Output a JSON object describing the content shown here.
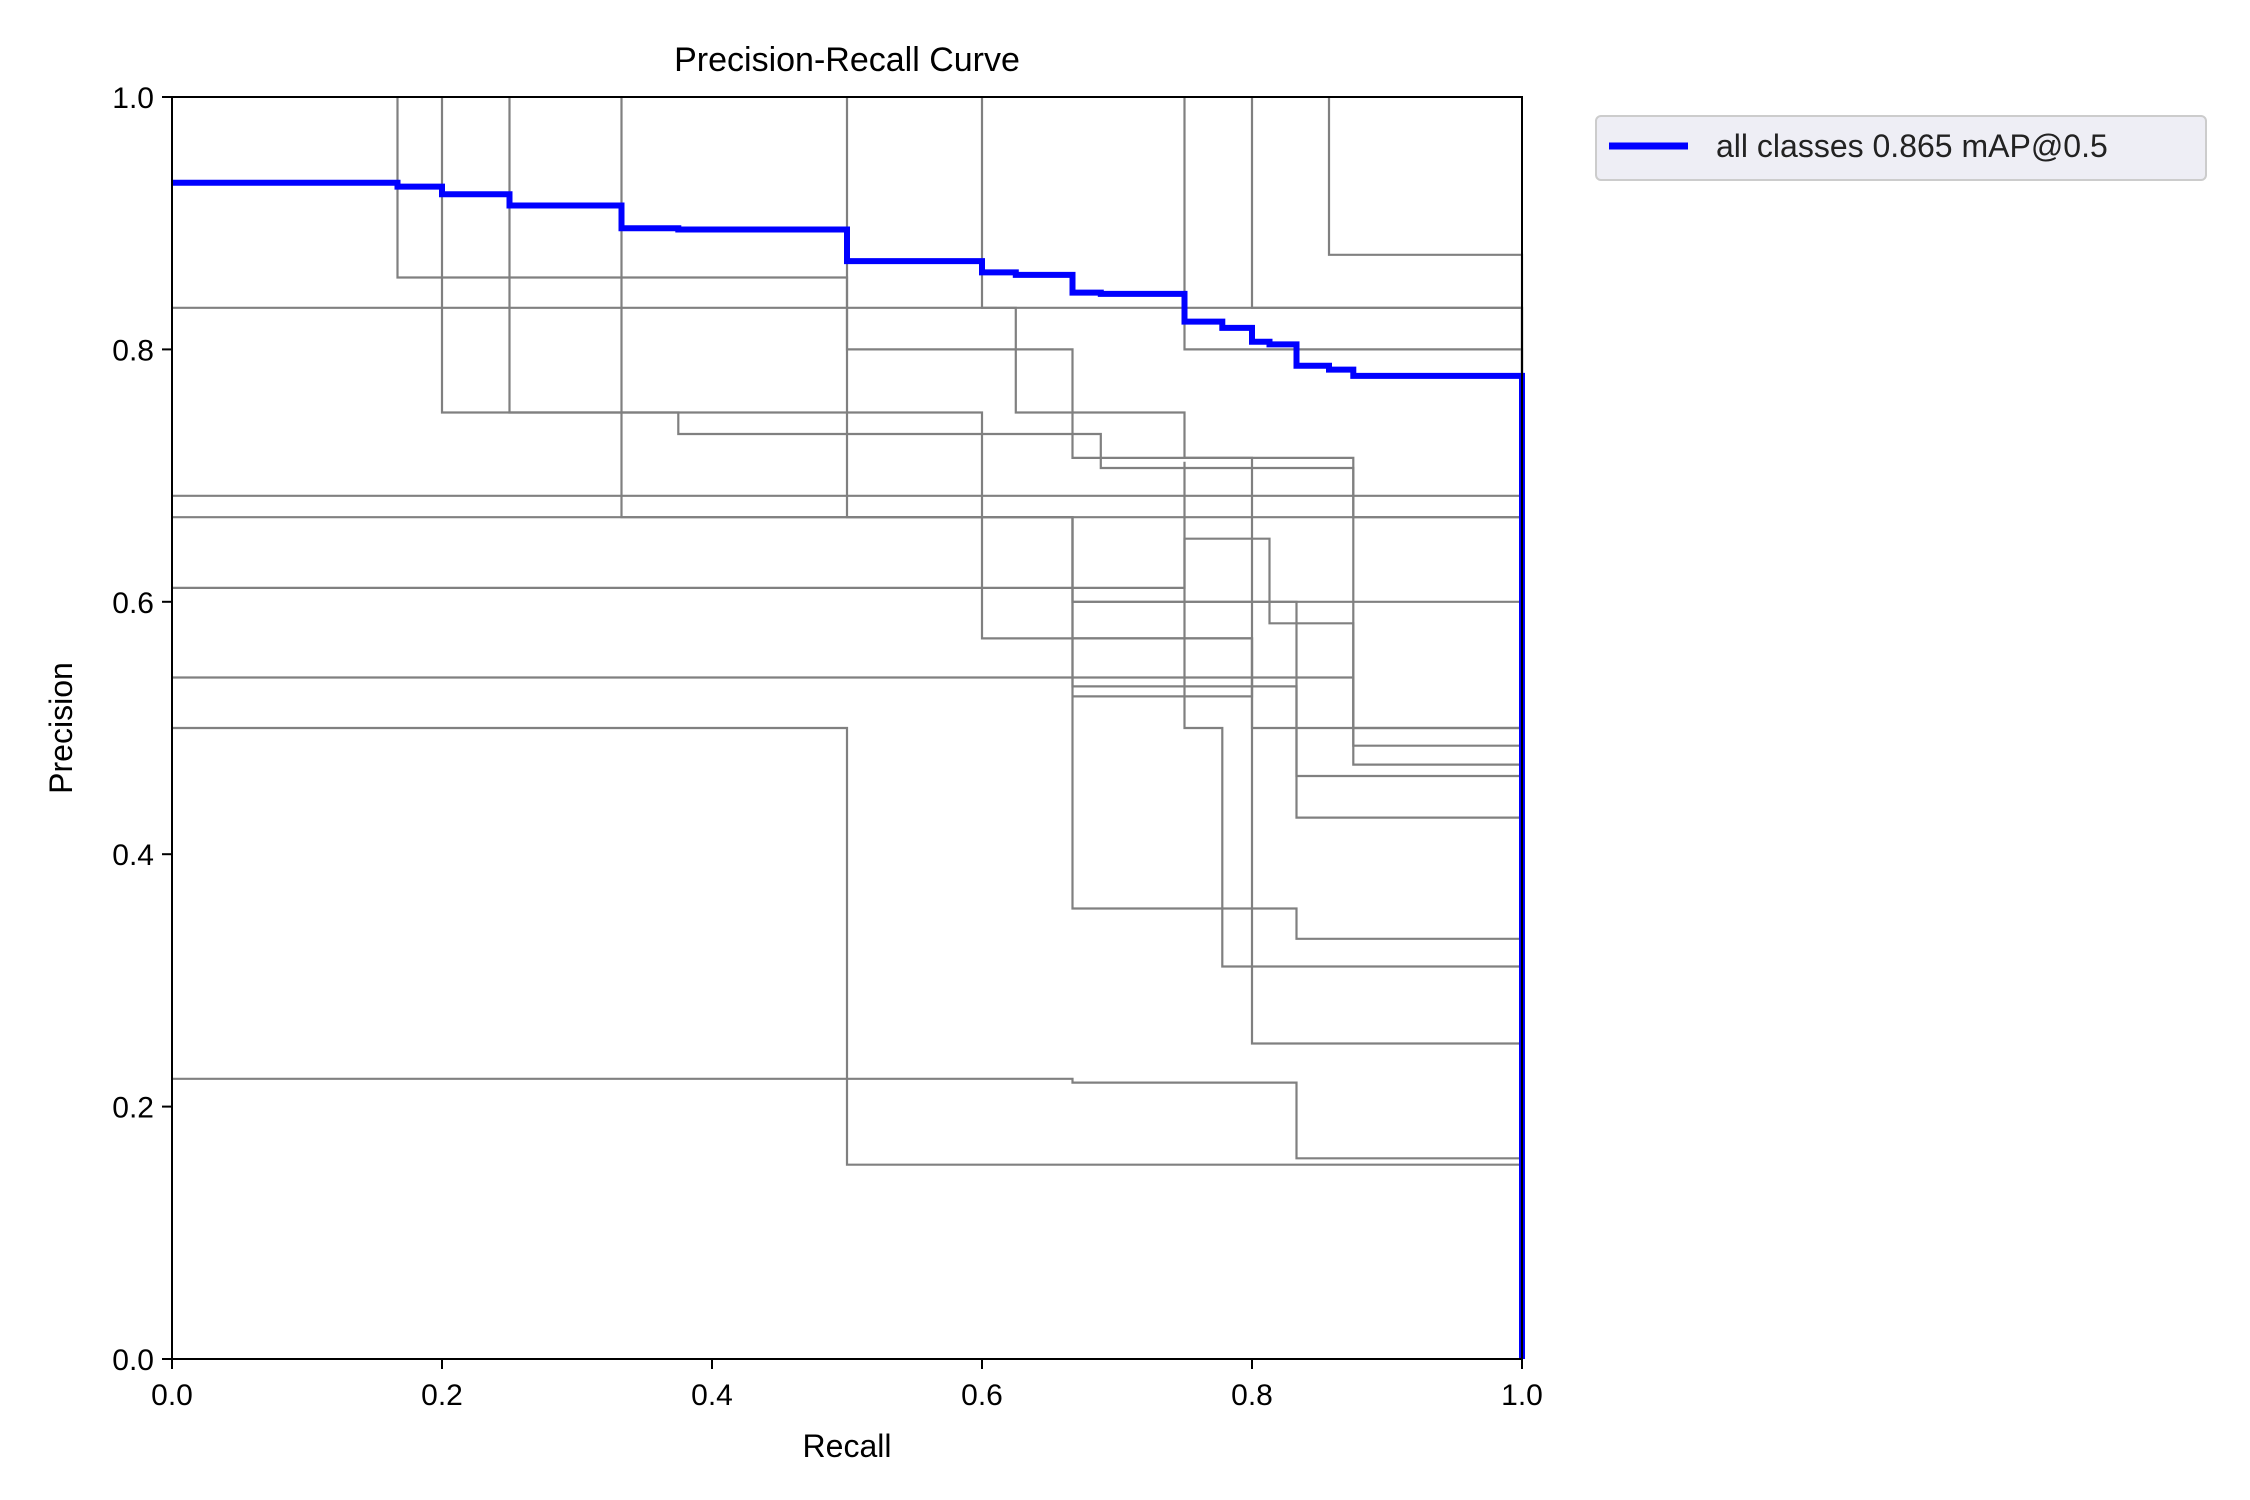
{
  "chart_data": {
    "type": "line",
    "title": "Precision-Recall Curve",
    "xlabel": "Recall",
    "ylabel": "Precision",
    "xlim": [
      0,
      1
    ],
    "ylim": [
      0,
      1
    ],
    "xticks": [
      "0.0",
      "0.2",
      "0.4",
      "0.6",
      "0.8",
      "1.0"
    ],
    "yticks": [
      "0.0",
      "0.2",
      "0.4",
      "0.6",
      "0.8",
      "1.0"
    ],
    "legend": {
      "placement": "outside-top-right",
      "entries": [
        "all classes 0.865 mAP@0.5"
      ]
    },
    "colors": {
      "per_class": "#808080",
      "all_classes": "#0000ff",
      "legend_bg": "#eeeef5",
      "legend_border": "#cccccc"
    },
    "series": [
      {
        "name": "all classes 0.865 mAP@0.5",
        "role": "all_classes",
        "points": [
          [
            0,
            0.932
          ],
          [
            0.167,
            0.932
          ],
          [
            0.167,
            0.929
          ],
          [
            0.2,
            0.929
          ],
          [
            0.2,
            0.923
          ],
          [
            0.25,
            0.923
          ],
          [
            0.25,
            0.914
          ],
          [
            0.333,
            0.914
          ],
          [
            0.333,
            0.896
          ],
          [
            0.375,
            0.896
          ],
          [
            0.375,
            0.895
          ],
          [
            0.5,
            0.895
          ],
          [
            0.5,
            0.87
          ],
          [
            0.6,
            0.87
          ],
          [
            0.6,
            0.861
          ],
          [
            0.625,
            0.861
          ],
          [
            0.625,
            0.859
          ],
          [
            0.667,
            0.859
          ],
          [
            0.667,
            0.845
          ],
          [
            0.688,
            0.845
          ],
          [
            0.688,
            0.844
          ],
          [
            0.75,
            0.844
          ],
          [
            0.75,
            0.822
          ],
          [
            0.778,
            0.822
          ],
          [
            0.778,
            0.817
          ],
          [
            0.8,
            0.817
          ],
          [
            0.8,
            0.806
          ],
          [
            0.813,
            0.806
          ],
          [
            0.813,
            0.804
          ],
          [
            0.833,
            0.804
          ],
          [
            0.833,
            0.787
          ],
          [
            0.857,
            0.787
          ],
          [
            0.857,
            0.784
          ],
          [
            0.875,
            0.784
          ],
          [
            0.875,
            0.779
          ],
          [
            1.0,
            0.779
          ],
          [
            1.0,
            0
          ]
        ]
      },
      {
        "points": [
          [
            0.857,
            1.0
          ],
          [
            0.857,
            0.875
          ],
          [
            1.0,
            0.875
          ],
          [
            1.0,
            0
          ]
        ]
      },
      {
        "points": [
          [
            0.8,
            1.0
          ],
          [
            0.8,
            0.833
          ],
          [
            1.0,
            0.833
          ],
          [
            1.0,
            0
          ]
        ]
      },
      {
        "points": [
          [
            0.75,
            1.0
          ],
          [
            0.75,
            0.8
          ],
          [
            1.0,
            0.8
          ],
          [
            1.0,
            0
          ]
        ]
      },
      {
        "points": [
          [
            0.6,
            1.0
          ],
          [
            0.6,
            0.833
          ],
          [
            0.625,
            0.833
          ],
          [
            0.625,
            0.75
          ],
          [
            0.75,
            0.75
          ],
          [
            0.75,
            0.714
          ],
          [
            0.875,
            0.714
          ],
          [
            0.875,
            0.667
          ],
          [
            1.0,
            0.667
          ],
          [
            1.0,
            0
          ]
        ]
      },
      {
        "points": [
          [
            0.5,
            1.0
          ],
          [
            0.5,
            0.8
          ],
          [
            0.667,
            0.8
          ],
          [
            0.667,
            0.714
          ],
          [
            0.8,
            0.714
          ],
          [
            0.8,
            0.5
          ],
          [
            1.0,
            0.5
          ],
          [
            1.0,
            0
          ]
        ]
      },
      {
        "points": [
          [
            0.333,
            1.0
          ],
          [
            0.333,
            0.667
          ],
          [
            0.667,
            0.667
          ],
          [
            0.667,
            0.6
          ],
          [
            1.0,
            0.6
          ],
          [
            1.0,
            0
          ]
        ]
      },
      {
        "points": [
          [
            0.25,
            1.0
          ],
          [
            0.25,
            0.75
          ],
          [
            0.375,
            0.75
          ],
          [
            0.375,
            0.733
          ],
          [
            0.688,
            0.733
          ],
          [
            0.688,
            0.706
          ],
          [
            0.875,
            0.706
          ],
          [
            0.875,
            0.486
          ],
          [
            1.0,
            0.486
          ],
          [
            1.0,
            0
          ]
        ]
      },
      {
        "points": [
          [
            0.2,
            1.0
          ],
          [
            0.2,
            0.75
          ],
          [
            0.6,
            0.75
          ],
          [
            0.6,
            0.571
          ],
          [
            0.8,
            0.571
          ],
          [
            0.8,
            0.25
          ],
          [
            1.0,
            0.25
          ],
          [
            1.0,
            0
          ]
        ]
      },
      {
        "points": [
          [
            0.167,
            1.0
          ],
          [
            0.167,
            0.857
          ],
          [
            0.5,
            0.857
          ],
          [
            0.5,
            0.667
          ],
          [
            0.667,
            0.667
          ],
          [
            0.667,
            0.533
          ],
          [
            0.833,
            0.533
          ],
          [
            0.833,
            0.429
          ],
          [
            1.0,
            0.429
          ],
          [
            1.0,
            0
          ]
        ]
      },
      {
        "points": [
          [
            0,
            0.833
          ],
          [
            1.0,
            0.833
          ],
          [
            1.0,
            0
          ]
        ]
      },
      {
        "points": [
          [
            0,
            0.684
          ],
          [
            1.0,
            0.684
          ],
          [
            1.0,
            0
          ]
        ]
      },
      {
        "points": [
          [
            0,
            0.667
          ],
          [
            1.0,
            0.667
          ],
          [
            1.0,
            0
          ]
        ]
      },
      {
        "points": [
          [
            0,
            0.611
          ],
          [
            0.75,
            0.611
          ],
          [
            0.75,
            0.65
          ],
          [
            0.813,
            0.65
          ],
          [
            0.813,
            0.583
          ],
          [
            0.875,
            0.583
          ],
          [
            0.875,
            0.471
          ],
          [
            1.0,
            0.471
          ],
          [
            1.0,
            0
          ]
        ]
      },
      {
        "points": [
          [
            0,
            0.54
          ],
          [
            0.875,
            0.54
          ],
          [
            0.875,
            0.5
          ],
          [
            1.0,
            0.5
          ],
          [
            1.0,
            0
          ]
        ]
      },
      {
        "points": [
          [
            0,
            0.5
          ],
          [
            0.5,
            0.5
          ],
          [
            0.5,
            0.154
          ],
          [
            1.0,
            0.154
          ],
          [
            1.0,
            0
          ]
        ]
      },
      {
        "points": [
          [
            0,
            0.222
          ],
          [
            0.667,
            0.222
          ],
          [
            0.667,
            0.219
          ],
          [
            0.833,
            0.219
          ],
          [
            0.833,
            0.159
          ],
          [
            1.0,
            0.159
          ],
          [
            1.0,
            0
          ]
        ]
      },
      {
        "points": [
          [
            0.667,
            0.667
          ],
          [
            0.667,
            0.357
          ],
          [
            0.833,
            0.357
          ],
          [
            0.833,
            0.333
          ],
          [
            1.0,
            0.333
          ],
          [
            1.0,
            0
          ]
        ]
      },
      {
        "points": [
          [
            0.75,
            0.711
          ],
          [
            0.75,
            0.5
          ],
          [
            0.778,
            0.5
          ],
          [
            0.778,
            0.311
          ],
          [
            1.0,
            0.311
          ],
          [
            1.0,
            0
          ]
        ]
      },
      {
        "points": [
          [
            0.667,
            0.6
          ],
          [
            0.833,
            0.6
          ],
          [
            0.833,
            0.462
          ],
          [
            1.0,
            0.462
          ],
          [
            1.0,
            0
          ]
        ]
      },
      {
        "points": [
          [
            0.667,
            0.571
          ],
          [
            0.8,
            0.571
          ],
          [
            0.8,
            0.525
          ],
          [
            0.667,
            0.525
          ]
        ]
      }
    ]
  }
}
